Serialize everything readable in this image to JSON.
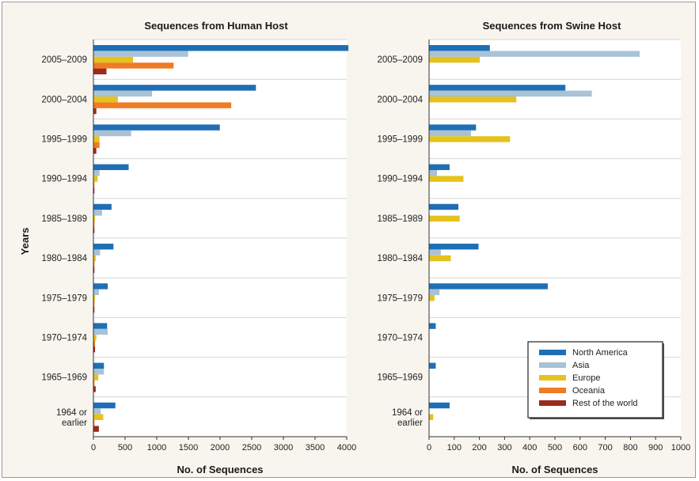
{
  "y_axis_label": "Years",
  "chart_data": [
    {
      "type": "bar",
      "orientation": "horizontal",
      "title": "Sequences from Human Host",
      "xlabel": "No. of Sequences",
      "ylabel": "Years",
      "xlim": [
        0,
        4000
      ],
      "xticks": [
        "0",
        "500",
        "1000",
        "1500",
        "2000",
        "2500",
        "3000",
        "3500",
        "4000"
      ],
      "categories": [
        "2005–2009",
        "2000–2004",
        "1995–1999",
        "1990–1994",
        "1985–1989",
        "1980–1984",
        "1975–1979",
        "1970–1974",
        "1965–1969",
        "1964 or\nearlier"
      ],
      "series": [
        {
          "name": "North America",
          "color": "#1f6fb5",
          "values": [
            4020,
            2560,
            1990,
            550,
            280,
            310,
            220,
            210,
            160,
            340
          ]
        },
        {
          "name": "Asia",
          "color": "#a9c2d6",
          "values": [
            1490,
            920,
            590,
            90,
            130,
            100,
            80,
            220,
            160,
            110
          ]
        },
        {
          "name": "Europe",
          "color": "#e6c21c",
          "values": [
            620,
            380,
            90,
            60,
            20,
            30,
            20,
            40,
            70,
            150
          ]
        },
        {
          "name": "Oceania",
          "color": "#ef7b25",
          "values": [
            1260,
            2170,
            90,
            10,
            10,
            10,
            10,
            20,
            10,
            10
          ]
        },
        {
          "name": "Rest of the world",
          "color": "#9a2a1c",
          "values": [
            200,
            40,
            40,
            10,
            10,
            10,
            10,
            20,
            30,
            80
          ]
        }
      ]
    },
    {
      "type": "bar",
      "orientation": "horizontal",
      "title": "Sequences from Swine Host",
      "xlabel": "No. of Sequences",
      "xlim": [
        0,
        1000
      ],
      "xticks": [
        "0",
        "100",
        "200",
        "300",
        "400",
        "500",
        "600",
        "700",
        "800",
        "900",
        "1000"
      ],
      "categories": [
        "2005–2009",
        "2000–2004",
        "1995–1999",
        "1990–1994",
        "1985–1989",
        "1980–1984",
        "1975–1979",
        "1970–1974",
        "1965–1969",
        "1964 or\nearlier"
      ],
      "series": [
        {
          "name": "North America",
          "color": "#1f6fb5",
          "values": [
            240,
            540,
            185,
            80,
            115,
            195,
            470,
            25,
            25,
            80
          ]
        },
        {
          "name": "Asia",
          "color": "#a9c2d6",
          "values": [
            835,
            645,
            165,
            30,
            0,
            45,
            40,
            0,
            0,
            0
          ]
        },
        {
          "name": "Europe",
          "color": "#e6c21c",
          "values": [
            200,
            345,
            320,
            135,
            120,
            85,
            20,
            0,
            0,
            15
          ]
        },
        {
          "name": "Oceania",
          "color": "#ef7b25",
          "values": [
            0,
            0,
            0,
            0,
            0,
            0,
            0,
            0,
            0,
            0
          ]
        },
        {
          "name": "Rest of the world",
          "color": "#9a2a1c",
          "values": [
            0,
            0,
            0,
            0,
            0,
            0,
            0,
            0,
            0,
            0
          ]
        }
      ],
      "legend": {
        "placement": "bottom-right",
        "entries": [
          "North America",
          "Asia",
          "Europe",
          "Oceania",
          "Rest of the world"
        ]
      }
    }
  ]
}
